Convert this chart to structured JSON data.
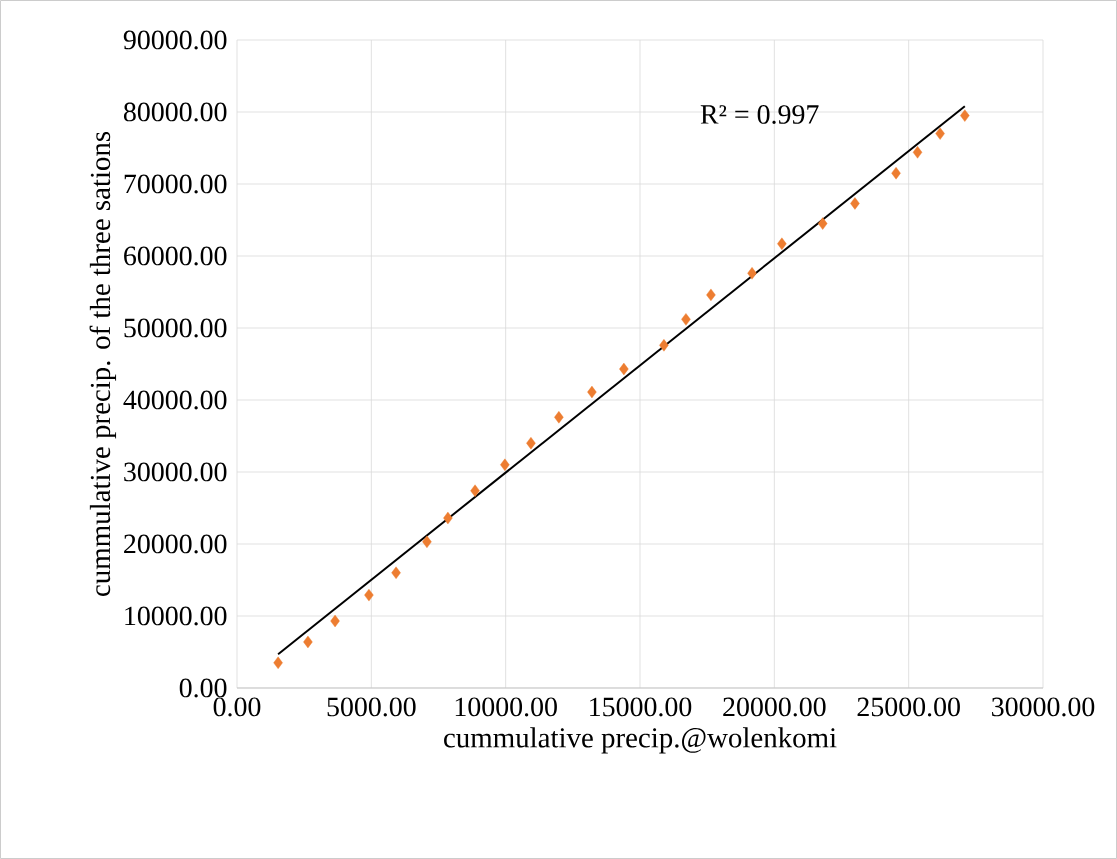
{
  "chart_data": {
    "type": "scatter",
    "xlabel": "cummulative precip.@wolenkomi",
    "ylabel": "cummulative precip. of the three sations",
    "xlim": [
      0,
      30000
    ],
    "ylim": [
      0,
      90000
    ],
    "xticks": [
      {
        "value": 0,
        "label": "0.00"
      },
      {
        "value": 5000,
        "label": "5000.00"
      },
      {
        "value": 10000,
        "label": "10000.00"
      },
      {
        "value": 15000,
        "label": "15000.00"
      },
      {
        "value": 20000,
        "label": "20000.00"
      },
      {
        "value": 25000,
        "label": "25000.00"
      },
      {
        "value": 30000,
        "label": "30000.00"
      }
    ],
    "yticks": [
      {
        "value": 0,
        "label": "0.00"
      },
      {
        "value": 10000,
        "label": "10000.00"
      },
      {
        "value": 20000,
        "label": "20000.00"
      },
      {
        "value": 30000,
        "label": "30000.00"
      },
      {
        "value": 40000,
        "label": "40000.00"
      },
      {
        "value": 50000,
        "label": "50000.00"
      },
      {
        "value": 60000,
        "label": "60000.00"
      },
      {
        "value": 70000,
        "label": "70000.00"
      },
      {
        "value": 80000,
        "label": "80000.00"
      },
      {
        "value": 90000,
        "label": "90000.00"
      }
    ],
    "grid": true,
    "marker": "diamond",
    "series": [
      {
        "color": "#ed7d31",
        "x": [
          1530,
          2640,
          3650,
          4910,
          5920,
          7070,
          7850,
          8860,
          9970,
          10940,
          11980,
          13210,
          14400,
          15890,
          16710,
          17640,
          19170,
          20280,
          21800,
          23000,
          24530,
          25330,
          26170,
          27090
        ],
        "values": [
          3500,
          6400,
          9300,
          12900,
          16000,
          20300,
          23600,
          27400,
          31000,
          34000,
          37600,
          41100,
          44300,
          47600,
          51200,
          54600,
          57600,
          61700,
          64500,
          67300,
          71500,
          74400,
          77000,
          79500
        ]
      },
      {
        "type": "line",
        "color": "#000000",
        "marker": "none",
        "x": [
          1530,
          27090
        ],
        "values": [
          4700,
          80800
        ]
      }
    ],
    "annotations": [
      "R² = 0.997"
    ]
  }
}
